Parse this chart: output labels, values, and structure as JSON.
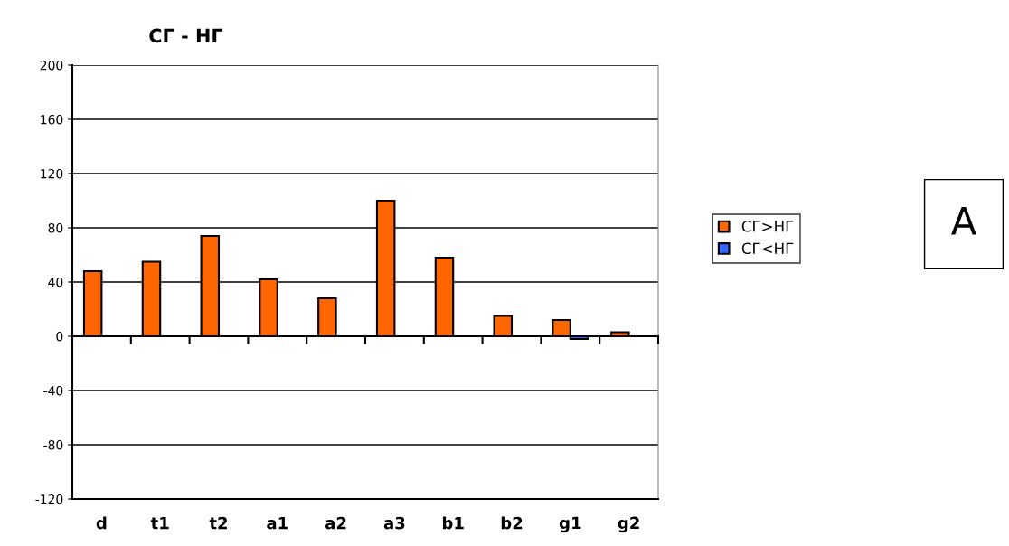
{
  "chart_data": {
    "type": "bar",
    "title": "СГ - НГ",
    "categories": [
      "d",
      "t1",
      "t2",
      "a1",
      "a2",
      "a3",
      "b1",
      "b2",
      "g1",
      "g2"
    ],
    "series": [
      {
        "name": "СГ>НГ",
        "color": "#ff6600",
        "values": [
          48,
          55,
          74,
          42,
          28,
          100,
          58,
          15,
          12,
          3
        ]
      },
      {
        "name": "СГ<НГ",
        "color": "#3366ff",
        "values": [
          null,
          null,
          null,
          null,
          null,
          null,
          null,
          null,
          -2,
          null
        ]
      }
    ],
    "ylim": [
      -120,
      200
    ],
    "yticks": [
      -120,
      -80,
      -40,
      0,
      40,
      80,
      120,
      160,
      200
    ],
    "grid": "y",
    "legend": "right",
    "annotations": [
      "A"
    ]
  }
}
